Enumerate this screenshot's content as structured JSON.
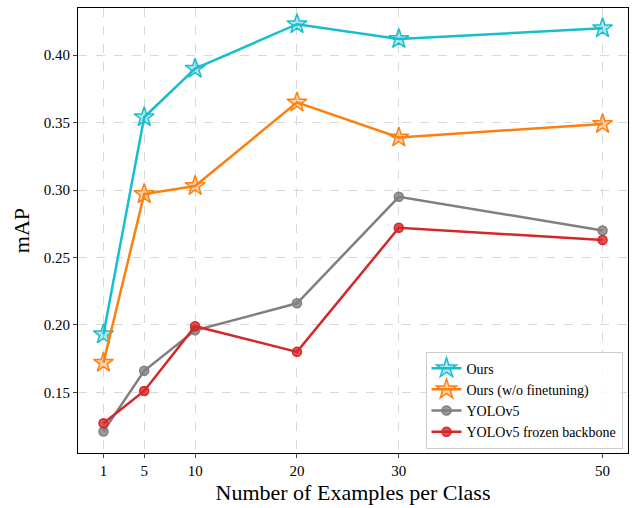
{
  "chart_data": {
    "type": "line",
    "x_label": "Number of Examples per Class",
    "y_label": "mAP",
    "x": [
      1,
      5,
      10,
      20,
      30,
      50
    ],
    "series": [
      {
        "name": "Ours",
        "color": "#17becf",
        "marker": "star",
        "values": [
          0.193,
          0.354,
          0.39,
          0.423,
          0.412,
          0.42
        ]
      },
      {
        "name": "Ours (w/o finetuning)",
        "color": "#ff7f0e",
        "marker": "star",
        "values": [
          0.172,
          0.297,
          0.303,
          0.365,
          0.339,
          0.349
        ]
      },
      {
        "name": "YOLOv5",
        "color": "#7f7f7f",
        "marker": "circle",
        "values": [
          0.121,
          0.166,
          0.196,
          0.216,
          0.295,
          0.27
        ]
      },
      {
        "name": "YOLOv5 frozen backbone",
        "color": "#d62728",
        "marker": "circle",
        "values": [
          0.127,
          0.151,
          0.199,
          0.18,
          0.272,
          0.263
        ]
      }
    ],
    "xlim": [
      -1.5,
      52.5
    ],
    "xticks": [
      1,
      5,
      10,
      20,
      30,
      50
    ],
    "ylim": [
      0.105,
      0.435
    ],
    "yticks": [
      0.15,
      {
        "value": 0.2,
        "label": "0.20"
      },
      0.25,
      {
        "value": 0.3,
        "label": "0.30"
      },
      0.35,
      {
        "value": 0.4,
        "label": "0.40"
      }
    ],
    "grid": true,
    "legend": "lower right"
  }
}
